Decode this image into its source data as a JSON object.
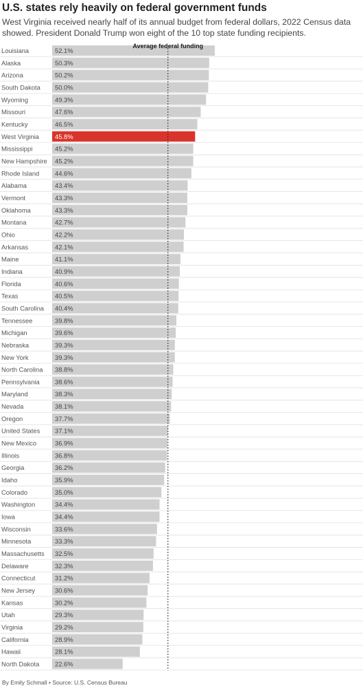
{
  "colors": {
    "bar": "#cfcfcf",
    "highlight": "#d9342b",
    "row_line": "#e6e6e6"
  },
  "chart_data": {
    "type": "bar",
    "orientation": "horizontal",
    "title": "U.S. states rely heavily on federal government funds",
    "subtitle": "West Virginia received nearly half of its annual budget from federal dollars, 2022 Census data showed. President Donald Trump won eight of the 10 top state funding recipients.",
    "categories": [
      "Louisiana",
      "Alaska",
      "Arizona",
      "South Dakota",
      "Wyoming",
      "Missouri",
      "Kentucky",
      "West Virginia",
      "Mississippi",
      "New Hampshire",
      "Rhode Island",
      "Alabama",
      "Vermont",
      "Oklahoma",
      "Montana",
      "Ohio",
      "Arkansas",
      "Maine",
      "Indiana",
      "Florida",
      "Texas",
      "South Carolina",
      "Tennessee",
      "Michigan",
      "Nebraska",
      "New York",
      "North Carolina",
      "Pennsylvania",
      "Maryland",
      "Nevada",
      "Oregon",
      "United States",
      "New Mexico",
      "Illinois",
      "Georgia",
      "Idaho",
      "Colorado",
      "Washington",
      "Iowa",
      "Wisconsin",
      "Minnesota",
      "Massachusetts",
      "Delaware",
      "Connecticut",
      "New Jersey",
      "Kansas",
      "Utah",
      "Virginia",
      "California",
      "Hawaii",
      "North Dakota"
    ],
    "values": [
      52.1,
      50.3,
      50.2,
      50.0,
      49.3,
      47.6,
      46.5,
      45.8,
      45.2,
      45.2,
      44.6,
      43.4,
      43.3,
      43.3,
      42.7,
      42.2,
      42.1,
      41.1,
      40.9,
      40.6,
      40.5,
      40.4,
      39.8,
      39.6,
      39.3,
      39.3,
      38.8,
      38.6,
      38.3,
      38.1,
      37.7,
      37.1,
      36.9,
      36.8,
      36.2,
      35.9,
      35.0,
      34.4,
      34.4,
      33.6,
      33.3,
      32.5,
      32.3,
      31.2,
      30.6,
      30.2,
      29.3,
      29.2,
      28.9,
      28.1,
      22.6
    ],
    "value_labels": [
      "52.1%",
      "50.3%",
      "50.2%",
      "50.0%",
      "49.3%",
      "47.6%",
      "46.5%",
      "45.8%",
      "45.2%",
      "45.2%",
      "44.6%",
      "43.4%",
      "43.3%",
      "43.3%",
      "42.7%",
      "42.2%",
      "42.1%",
      "41.1%",
      "40.9%",
      "40.6%",
      "40.5%",
      "40.4%",
      "39.8%",
      "39.6%",
      "39.3%",
      "39.3%",
      "38.8%",
      "38.6%",
      "38.3%",
      "38.1%",
      "37.7%",
      "37.1%",
      "36.9%",
      "36.8%",
      "36.2%",
      "35.9%",
      "35.0%",
      "34.4%",
      "34.4%",
      "33.6%",
      "33.3%",
      "32.5%",
      "32.3%",
      "31.2%",
      "30.6%",
      "30.2%",
      "29.3%",
      "29.2%",
      "28.9%",
      "28.1%",
      "22.6%"
    ],
    "highlight": "West Virginia",
    "unit": "%",
    "xlim": [
      0,
      52.1
    ],
    "reference_line": {
      "label": "Average federal funding",
      "value": 37.1
    },
    "grid": false
  },
  "footer": "By Emily Schmall • Source: U.S. Census Bureau"
}
